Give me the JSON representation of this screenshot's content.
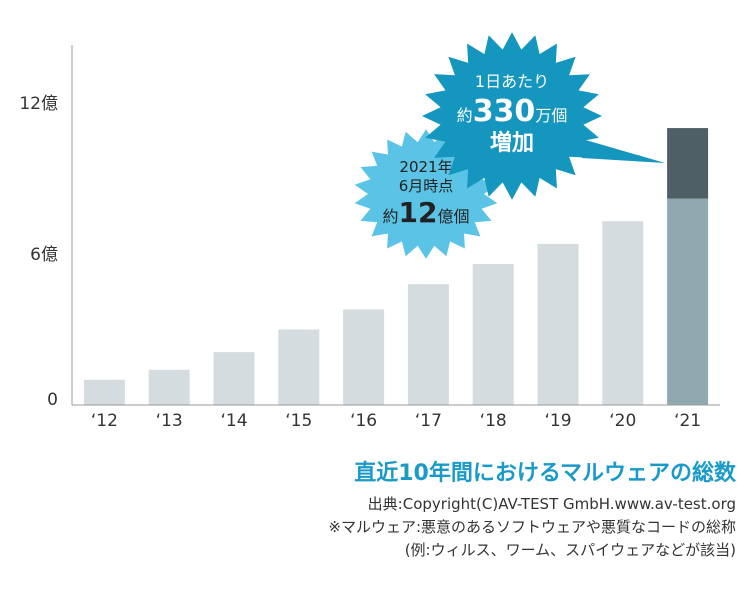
{
  "chart_data": {
    "type": "bar",
    "categories": [
      "‘12",
      "‘13",
      "‘14",
      "‘15",
      "‘16",
      "‘17",
      "‘18",
      "‘19",
      "‘20",
      "‘21"
    ],
    "series": [
      {
        "values": [
          1.0,
          1.4,
          2.1,
          3.0,
          3.8,
          4.8,
          5.6,
          6.4,
          7.3,
          8.2
        ]
      },
      {
        "values": [
          0,
          0,
          0,
          0,
          0,
          0,
          0,
          0,
          0,
          2.8
        ]
      }
    ],
    "ylim": [
      0,
      14.3
    ],
    "yticks": [
      {
        "value": 0,
        "label": "0"
      },
      {
        "value": 6,
        "label": "6億"
      },
      {
        "value": 12,
        "label": "12億"
      }
    ],
    "grid": false,
    "colors": {
      "past": "#d5dcdf",
      "current_base": "#8fa9ae",
      "current_increase": "#4f5f66",
      "badge_light": "#5bc4e6",
      "badge_dark": "#1596bf",
      "axis": "#999999"
    },
    "annotations": {
      "badge_total": {
        "line1": "2021年",
        "line2": "6月時点",
        "prefix": "約",
        "number": "12",
        "suffix": "億個"
      },
      "badge_daily": {
        "line1": "1日あたり",
        "prefix": "約",
        "number": "330",
        "suffix": "万個",
        "line3": "増加"
      }
    }
  },
  "caption": {
    "title": "直近10年間におけるマルウェアの総数",
    "source": "出典:Copyright(C)AV-TEST GmbH.www.av-test.org",
    "note1": "※マルウェア:悪意のあるソフトウェアや悪質なコードの総称",
    "note2": "(例:ウィルス、ワーム、スパイウェアなどが該当)"
  }
}
